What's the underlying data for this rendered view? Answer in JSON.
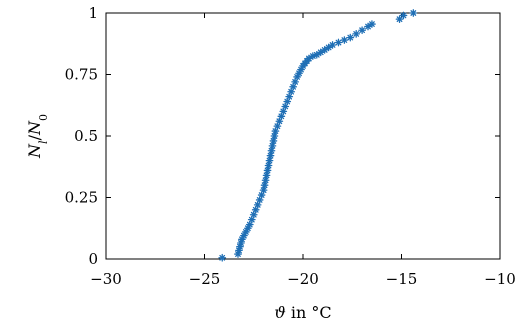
{
  "chart_data": {
    "type": "scatter",
    "xlabel": "ϑ in °C",
    "ylabel": "N_l/N_0",
    "xlim": [
      -30,
      -10
    ],
    "ylim": [
      0,
      1
    ],
    "x_ticks": [
      -30,
      -25,
      -20,
      -15,
      -10
    ],
    "x_tick_labels": [
      "−30",
      "−25",
      "−20",
      "−15",
      "−10"
    ],
    "y_ticks": [
      0,
      0.25,
      0.5,
      0.75,
      1
    ],
    "y_tick_labels": [
      "0",
      "0.25",
      "0.5",
      "0.75",
      "1"
    ],
    "grid": false,
    "legend": "none",
    "marker": "asterisk",
    "color": "#1f6fb5",
    "series": [
      {
        "x": [
          -24.1,
          -23.3,
          -23.25,
          -23.2,
          -23.15,
          -23.1,
          -23.0,
          -22.9,
          -22.8,
          -22.7,
          -22.6,
          -22.5,
          -22.4,
          -22.3,
          -22.2,
          -22.1,
          -22.0,
          -21.95,
          -21.9,
          -21.85,
          -21.8,
          -21.75,
          -21.7,
          -21.65,
          -21.6,
          -21.55,
          -21.5,
          -21.45,
          -21.4,
          -21.3,
          -21.2,
          -21.1,
          -21.0,
          -20.9,
          -20.8,
          -20.7,
          -20.6,
          -20.5,
          -20.4,
          -20.3,
          -20.2,
          -20.1,
          -20.0,
          -19.9,
          -19.8,
          -19.7,
          -19.5,
          -19.3,
          -19.1,
          -18.9,
          -18.7,
          -18.5,
          -18.2,
          -17.9,
          -17.6,
          -17.3,
          -17.0,
          -16.7,
          -16.5,
          -15.1,
          -14.9,
          -14.4
        ],
        "y": [
          0.005,
          0.02,
          0.035,
          0.05,
          0.065,
          0.08,
          0.095,
          0.11,
          0.125,
          0.14,
          0.16,
          0.18,
          0.2,
          0.22,
          0.24,
          0.26,
          0.28,
          0.3,
          0.32,
          0.34,
          0.36,
          0.38,
          0.4,
          0.42,
          0.44,
          0.46,
          0.48,
          0.5,
          0.52,
          0.54,
          0.56,
          0.58,
          0.6,
          0.62,
          0.64,
          0.66,
          0.68,
          0.7,
          0.72,
          0.74,
          0.755,
          0.77,
          0.785,
          0.795,
          0.805,
          0.815,
          0.825,
          0.83,
          0.84,
          0.85,
          0.86,
          0.87,
          0.88,
          0.89,
          0.9,
          0.915,
          0.93,
          0.945,
          0.955,
          0.975,
          0.99,
          1.0
        ]
      }
    ]
  }
}
